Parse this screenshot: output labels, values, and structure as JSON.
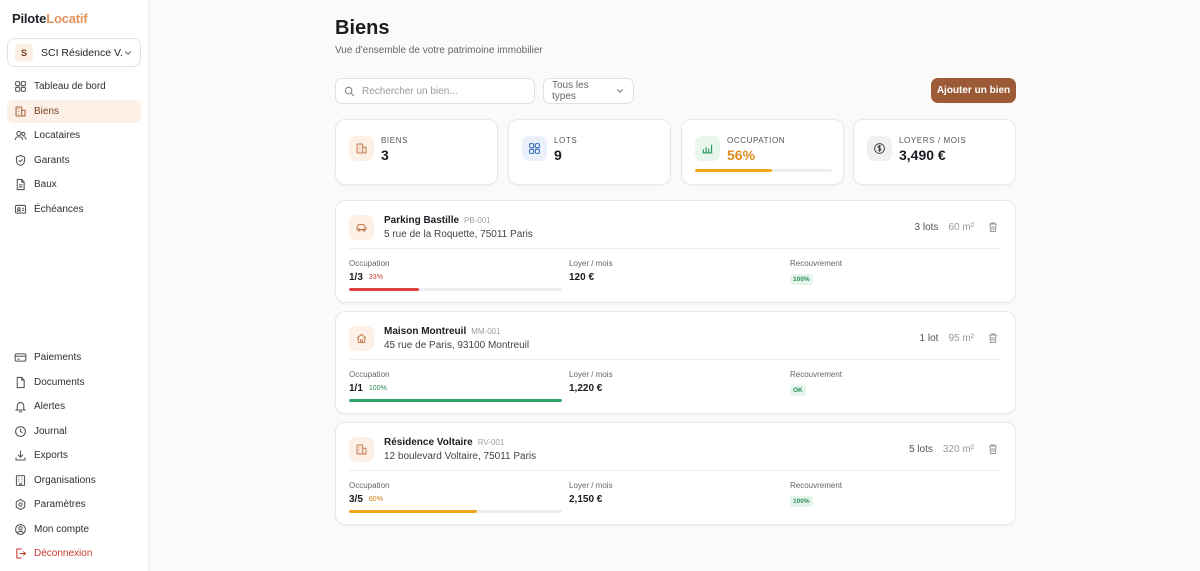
{
  "app": {
    "logo_a": "Pilote",
    "logo_b": "Locatif"
  },
  "org": {
    "initial": "S",
    "name": "SCI Résidence V..."
  },
  "nav_main": [
    {
      "label": "Tableau de bord",
      "icon": "dashboard-icon",
      "active": false
    },
    {
      "label": "Biens",
      "icon": "building-icon",
      "active": true
    },
    {
      "label": "Locataires",
      "icon": "users-icon",
      "active": false
    },
    {
      "label": "Garants",
      "icon": "shield-icon",
      "active": false
    },
    {
      "label": "Baux",
      "icon": "document-icon",
      "active": false
    },
    {
      "label": "Échéances",
      "icon": "calendar-icon",
      "active": false
    }
  ],
  "nav_bottom": [
    {
      "label": "Paiements",
      "icon": "card-icon"
    },
    {
      "label": "Documents",
      "icon": "file-icon"
    },
    {
      "label": "Alertes",
      "icon": "bell-icon"
    },
    {
      "label": "Journal",
      "icon": "clock-icon"
    },
    {
      "label": "Exports",
      "icon": "download-icon"
    },
    {
      "label": "Organisations",
      "icon": "organization-icon"
    },
    {
      "label": "Paramètres",
      "icon": "settings-icon"
    },
    {
      "label": "Mon compte",
      "icon": "user-circle-icon"
    },
    {
      "label": "Déconnexion",
      "icon": "logout-icon"
    }
  ],
  "page": {
    "title": "Biens",
    "subtitle": "Vue d'ensemble de votre patrimoine immobilier"
  },
  "toolbar": {
    "search_placeholder": "Rechercher un bien...",
    "search_value": "",
    "type_filter": "Tous les types",
    "add_label": "Ajouter un bien"
  },
  "stats": {
    "biens": {
      "label": "Biens",
      "value": "3"
    },
    "lots": {
      "label": "Lots",
      "value": "9"
    },
    "occupation": {
      "label": "Occupation",
      "value": "56%",
      "fill": 0.56
    },
    "loyers": {
      "label": "Loyers / mois",
      "value": "3,490 €"
    }
  },
  "labels": {
    "occupation": "Occupation",
    "loyer": "Loyer / mois",
    "recouvrement": "Recouvrement"
  },
  "colors": {
    "accent": "#9c5a36",
    "red": "#e0403a",
    "green": "#2aa66a",
    "orange": "#f0a51a"
  },
  "properties": [
    {
      "name": "Parking Bastille",
      "code": "PB-001",
      "address": "5 rue de la Roquette, 75011 Paris",
      "icon": "car-icon",
      "lots": "3 lots",
      "area": "60 m²",
      "occupation": "1/3",
      "occupation_pct": "33%",
      "occupation_fill": 0.33,
      "occupation_color": "red",
      "rent": "120 €",
      "recouvrement": "100%"
    },
    {
      "name": "Maison Montreuil",
      "code": "MM-001",
      "address": "45 rue de Paris, 93100 Montreuil",
      "icon": "house-icon",
      "lots": "1 lot",
      "area": "95 m²",
      "occupation": "1/1",
      "occupation_pct": "100%",
      "occupation_fill": 1.0,
      "occupation_color": "green",
      "rent": "1,220 €",
      "recouvrement": "OK"
    },
    {
      "name": "Résidence Voltaire",
      "code": "RV-001",
      "address": "12 boulevard Voltaire, 75011 Paris",
      "icon": "building-icon",
      "lots": "5 lots",
      "area": "320 m²",
      "occupation": "3/5",
      "occupation_pct": "60%",
      "occupation_fill": 0.6,
      "occupation_color": "orange",
      "rent": "2,150 €",
      "recouvrement": "100%"
    }
  ]
}
